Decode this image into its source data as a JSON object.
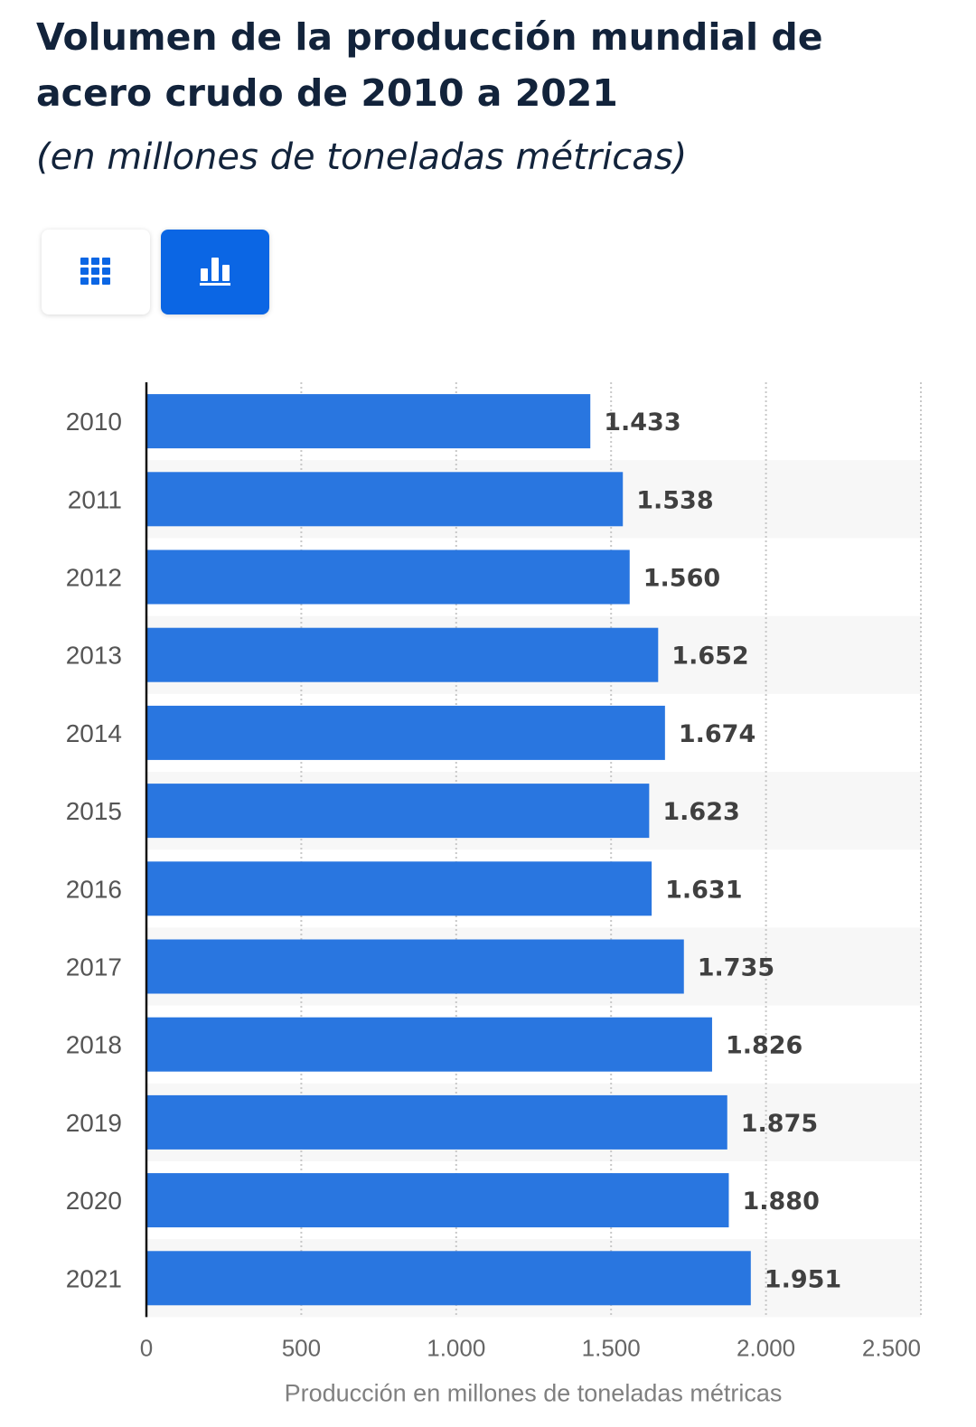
{
  "header": {
    "title": "Volumen de la producción mundial de acero crudo de 2010 a 2021",
    "subtitle": "(en millones de toneladas métricas)"
  },
  "toolbar": {
    "table_view": {
      "icon": "table-grid-icon",
      "selected": false
    },
    "chart_view": {
      "icon": "bar-chart-icon",
      "selected": true
    }
  },
  "colors": {
    "bar": "#2976e0",
    "accent": "#0b66e4",
    "title": "#12233b",
    "label": "#555555",
    "value_label": "#404040",
    "band": "#f7f7f7"
  },
  "chart_data": {
    "type": "bar",
    "orientation": "horizontal",
    "categories": [
      "2010",
      "2011",
      "2012",
      "2013",
      "2014",
      "2015",
      "2016",
      "2017",
      "2018",
      "2019",
      "2020",
      "2021"
    ],
    "values": [
      1433,
      1538,
      1560,
      1652,
      1674,
      1623,
      1631,
      1735,
      1826,
      1875,
      1880,
      1951
    ],
    "value_labels": [
      "1.433",
      "1.538",
      "1.560",
      "1.652",
      "1.674",
      "1.623",
      "1.631",
      "1.735",
      "1.826",
      "1.875",
      "1.880",
      "1.951"
    ],
    "title": "Volumen de la producción mundial de acero crudo de 2010 a 2021",
    "subtitle": "(en millones de toneladas métricas)",
    "xlabel": "Producción en millones de toneladas métricas",
    "ylabel": "",
    "xlim": [
      0,
      2500
    ],
    "xticks": [
      0,
      500,
      1000,
      1500,
      2000,
      2500
    ],
    "xtick_labels": [
      "0",
      "500",
      "1.000",
      "1.500",
      "2.000",
      "2.500"
    ],
    "grid": true,
    "alternating_row_bands": true
  }
}
